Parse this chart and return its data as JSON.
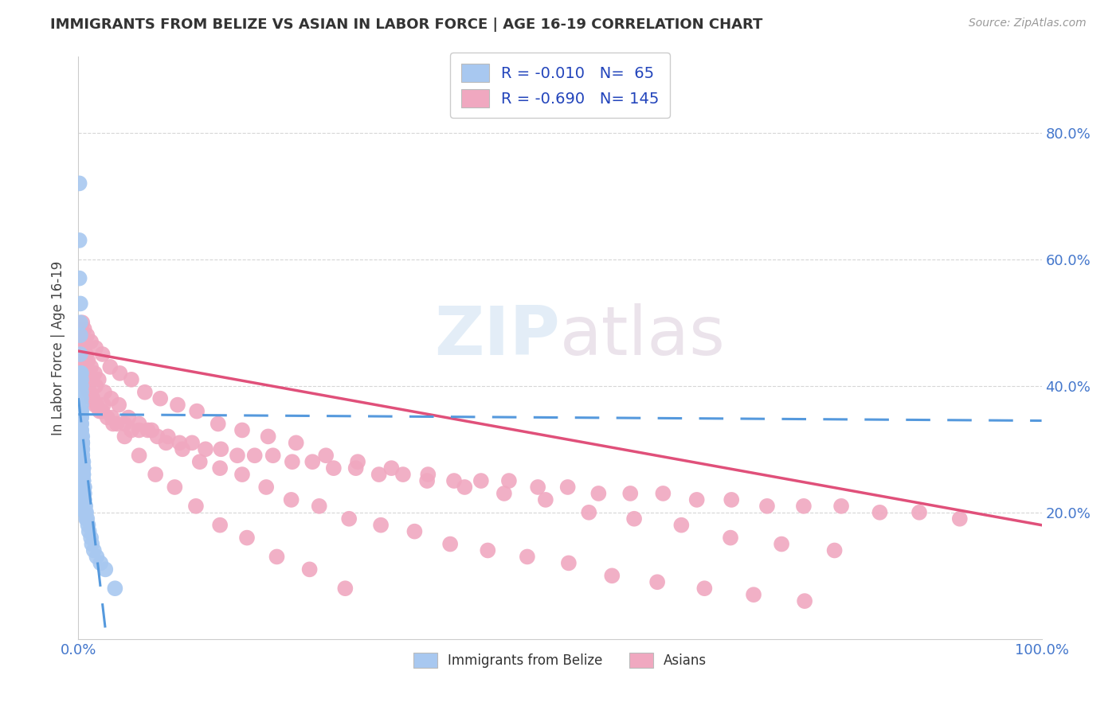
{
  "title": "IMMIGRANTS FROM BELIZE VS ASIAN IN LABOR FORCE | AGE 16-19 CORRELATION CHART",
  "source": "Source: ZipAtlas.com",
  "ylabel": "In Labor Force | Age 16-19",
  "ytick_labels": [
    "20.0%",
    "40.0%",
    "60.0%",
    "80.0%"
  ],
  "ytick_values": [
    0.2,
    0.4,
    0.6,
    0.8
  ],
  "xtick_left": "0.0%",
  "xtick_right": "100.0%",
  "xlim": [
    0.0,
    1.0
  ],
  "ylim": [
    0.0,
    0.92
  ],
  "belize_color": "#a8c8f0",
  "asian_color": "#f0a8c0",
  "belize_line_color": "#5599dd",
  "asian_line_color": "#e0507a",
  "watermark": "ZIPatlas",
  "background_color": "#ffffff",
  "legend_labels_top": [
    "R = -0.010   N=  65",
    "R = -0.690   N= 145"
  ],
  "legend_labels_bottom": [
    "Immigrants from Belize",
    "Asians"
  ],
  "belize_intercept": 0.355,
  "belize_slope": -0.01,
  "asian_intercept": 0.455,
  "asian_slope": -0.275,
  "belize_x": [
    0.001,
    0.001,
    0.001,
    0.002,
    0.002,
    0.002,
    0.002,
    0.002,
    0.003,
    0.003,
    0.003,
    0.003,
    0.003,
    0.003,
    0.003,
    0.003,
    0.003,
    0.003,
    0.003,
    0.003,
    0.003,
    0.003,
    0.003,
    0.003,
    0.004,
    0.004,
    0.004,
    0.004,
    0.004,
    0.004,
    0.004,
    0.004,
    0.004,
    0.004,
    0.005,
    0.005,
    0.005,
    0.005,
    0.005,
    0.005,
    0.005,
    0.005,
    0.005,
    0.006,
    0.006,
    0.006,
    0.006,
    0.006,
    0.006,
    0.007,
    0.007,
    0.007,
    0.007,
    0.008,
    0.008,
    0.009,
    0.01,
    0.011,
    0.013,
    0.014,
    0.016,
    0.019,
    0.023,
    0.028,
    0.038
  ],
  "belize_y": [
    0.72,
    0.63,
    0.57,
    0.53,
    0.5,
    0.48,
    0.45,
    0.42,
    0.42,
    0.41,
    0.4,
    0.39,
    0.38,
    0.37,
    0.36,
    0.36,
    0.35,
    0.35,
    0.34,
    0.34,
    0.33,
    0.33,
    0.32,
    0.32,
    0.32,
    0.31,
    0.31,
    0.31,
    0.3,
    0.3,
    0.29,
    0.29,
    0.28,
    0.28,
    0.28,
    0.27,
    0.27,
    0.27,
    0.26,
    0.26,
    0.25,
    0.25,
    0.25,
    0.24,
    0.24,
    0.23,
    0.23,
    0.22,
    0.22,
    0.21,
    0.21,
    0.2,
    0.2,
    0.2,
    0.19,
    0.19,
    0.18,
    0.17,
    0.16,
    0.15,
    0.14,
    0.13,
    0.12,
    0.11,
    0.08
  ],
  "asian_x": [
    0.002,
    0.003,
    0.003,
    0.003,
    0.004,
    0.004,
    0.004,
    0.005,
    0.005,
    0.005,
    0.006,
    0.006,
    0.007,
    0.007,
    0.008,
    0.008,
    0.009,
    0.01,
    0.011,
    0.012,
    0.014,
    0.015,
    0.017,
    0.019,
    0.022,
    0.025,
    0.03,
    0.035,
    0.04,
    0.048,
    0.055,
    0.063,
    0.072,
    0.082,
    0.093,
    0.105,
    0.118,
    0.132,
    0.148,
    0.165,
    0.183,
    0.202,
    0.222,
    0.243,
    0.265,
    0.288,
    0.312,
    0.337,
    0.363,
    0.39,
    0.418,
    0.447,
    0.477,
    0.508,
    0.54,
    0.573,
    0.607,
    0.642,
    0.678,
    0.715,
    0.753,
    0.792,
    0.832,
    0.873,
    0.915,
    0.003,
    0.004,
    0.005,
    0.006,
    0.008,
    0.01,
    0.013,
    0.017,
    0.021,
    0.027,
    0.034,
    0.042,
    0.052,
    0.063,
    0.076,
    0.091,
    0.108,
    0.126,
    0.147,
    0.17,
    0.195,
    0.221,
    0.25,
    0.281,
    0.314,
    0.349,
    0.386,
    0.425,
    0.466,
    0.509,
    0.554,
    0.601,
    0.65,
    0.701,
    0.754,
    0.004,
    0.006,
    0.009,
    0.013,
    0.018,
    0.025,
    0.033,
    0.043,
    0.055,
    0.069,
    0.085,
    0.103,
    0.123,
    0.145,
    0.17,
    0.197,
    0.226,
    0.257,
    0.29,
    0.325,
    0.362,
    0.401,
    0.442,
    0.485,
    0.53,
    0.577,
    0.626,
    0.677,
    0.73,
    0.785,
    0.005,
    0.008,
    0.012,
    0.018,
    0.026,
    0.036,
    0.048,
    0.063,
    0.08,
    0.1,
    0.122,
    0.147,
    0.175,
    0.206,
    0.24,
    0.277
  ],
  "asian_y": [
    0.48,
    0.47,
    0.46,
    0.46,
    0.46,
    0.45,
    0.44,
    0.44,
    0.44,
    0.43,
    0.43,
    0.42,
    0.42,
    0.41,
    0.41,
    0.4,
    0.4,
    0.4,
    0.39,
    0.39,
    0.38,
    0.38,
    0.37,
    0.37,
    0.36,
    0.36,
    0.35,
    0.35,
    0.34,
    0.34,
    0.33,
    0.33,
    0.33,
    0.32,
    0.32,
    0.31,
    0.31,
    0.3,
    0.3,
    0.29,
    0.29,
    0.29,
    0.28,
    0.28,
    0.27,
    0.27,
    0.26,
    0.26,
    0.26,
    0.25,
    0.25,
    0.25,
    0.24,
    0.24,
    0.23,
    0.23,
    0.23,
    0.22,
    0.22,
    0.21,
    0.21,
    0.21,
    0.2,
    0.2,
    0.19,
    0.49,
    0.48,
    0.47,
    0.46,
    0.45,
    0.44,
    0.43,
    0.42,
    0.41,
    0.39,
    0.38,
    0.37,
    0.35,
    0.34,
    0.33,
    0.31,
    0.3,
    0.28,
    0.27,
    0.26,
    0.24,
    0.22,
    0.21,
    0.19,
    0.18,
    0.17,
    0.15,
    0.14,
    0.13,
    0.12,
    0.1,
    0.09,
    0.08,
    0.07,
    0.06,
    0.5,
    0.49,
    0.48,
    0.47,
    0.46,
    0.45,
    0.43,
    0.42,
    0.41,
    0.39,
    0.38,
    0.37,
    0.36,
    0.34,
    0.33,
    0.32,
    0.31,
    0.29,
    0.28,
    0.27,
    0.25,
    0.24,
    0.23,
    0.22,
    0.2,
    0.19,
    0.18,
    0.16,
    0.15,
    0.14,
    0.46,
    0.44,
    0.42,
    0.4,
    0.37,
    0.34,
    0.32,
    0.29,
    0.26,
    0.24,
    0.21,
    0.18,
    0.16,
    0.13,
    0.11,
    0.08
  ]
}
